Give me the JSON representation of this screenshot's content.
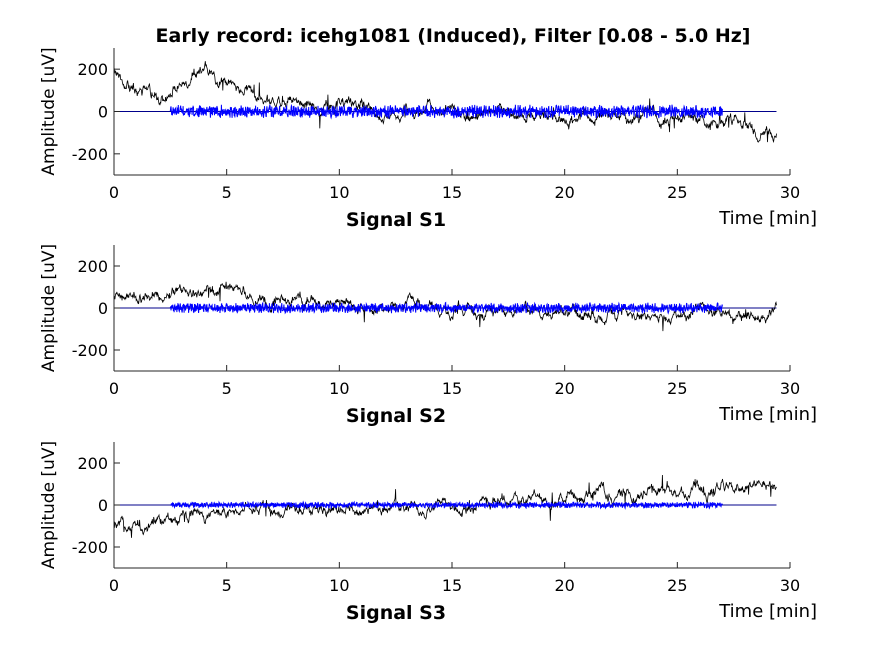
{
  "title": "Early record: icehg1081 (Induced), Filter [0.08 - 5.0 Hz]",
  "colors": {
    "raw": "#000000",
    "filtered": "#0000ff",
    "baseline": "#00008b"
  },
  "chart_data": [
    {
      "type": "line",
      "name": "Signal S1",
      "xlabel": "Signal S1",
      "xunit_label": "Time [min]",
      "ylabel": "Amplitude [uV]",
      "xlim": [
        0,
        30
      ],
      "ylim": [
        -300,
        300
      ],
      "xticks": [
        "0",
        "5",
        "10",
        "15",
        "20",
        "25",
        "30"
      ],
      "yticks": [
        "200",
        "0",
        "-200"
      ],
      "raw_envelope": {
        "x": [
          0,
          1,
          2,
          3,
          4,
          5,
          6,
          7,
          8,
          9,
          10,
          11,
          12,
          13,
          14,
          15,
          16,
          17,
          18,
          19,
          20,
          21,
          22,
          23,
          24,
          25,
          26,
          27,
          28,
          29,
          29.4
        ],
        "y": [
          200,
          100,
          60,
          150,
          180,
          120,
          100,
          60,
          80,
          40,
          30,
          20,
          10,
          0,
          10,
          0,
          -10,
          -10,
          -20,
          -30,
          -30,
          -20,
          -30,
          -40,
          -30,
          -40,
          -40,
          -50,
          -70,
          -90,
          -70
        ]
      },
      "filtered_range": [
        2.5,
        27
      ],
      "filtered_amplitude": 25
    },
    {
      "type": "line",
      "name": "Signal S2",
      "xlabel": "Signal S2",
      "xunit_label": "Time [min]",
      "ylabel": "Amplitude [uV]",
      "xlim": [
        0,
        30
      ],
      "ylim": [
        -300,
        300
      ],
      "xticks": [
        "0",
        "5",
        "10",
        "15",
        "20",
        "25",
        "30"
      ],
      "yticks": [
        "200",
        "0",
        "-200"
      ],
      "raw_envelope": {
        "x": [
          0,
          1,
          2,
          3,
          4,
          5,
          6,
          7,
          8,
          9,
          10,
          11,
          12,
          13,
          14,
          15,
          16,
          17,
          18,
          19,
          20,
          21,
          22,
          23,
          24,
          25,
          26,
          27,
          28,
          29,
          29.4
        ],
        "y": [
          60,
          20,
          40,
          80,
          60,
          100,
          40,
          30,
          40,
          20,
          10,
          10,
          0,
          10,
          0,
          -10,
          -10,
          -20,
          -10,
          -20,
          -10,
          -10,
          -20,
          -10,
          -20,
          -20,
          -10,
          -20,
          -30,
          -40,
          0
        ]
      },
      "filtered_range": [
        2.5,
        27
      ],
      "filtered_amplitude": 20
    },
    {
      "type": "line",
      "name": "Signal S3",
      "xlabel": "Signal S3",
      "xunit_label": "Time [min]",
      "ylabel": "Amplitude [uV]",
      "xlim": [
        0,
        30
      ],
      "ylim": [
        -300,
        300
      ],
      "xticks": [
        "0",
        "5",
        "10",
        "15",
        "20",
        "25",
        "30"
      ],
      "yticks": [
        "200",
        "0",
        "-200"
      ],
      "raw_envelope": {
        "x": [
          0,
          1,
          2,
          3,
          4,
          5,
          6,
          7,
          8,
          9,
          10,
          11,
          12,
          13,
          14,
          15,
          16,
          17,
          18,
          19,
          20,
          21,
          22,
          23,
          24,
          25,
          26,
          27,
          28,
          29,
          29.4
        ],
        "y": [
          -110,
          -100,
          -90,
          -70,
          -50,
          -40,
          -30,
          -20,
          -20,
          -15,
          -10,
          -10,
          -5,
          -10,
          -5,
          0,
          0,
          5,
          10,
          20,
          30,
          40,
          40,
          50,
          50,
          60,
          70,
          80,
          80,
          90,
          100
        ]
      },
      "filtered_range": [
        2.5,
        27
      ],
      "filtered_amplitude": 12
    }
  ]
}
